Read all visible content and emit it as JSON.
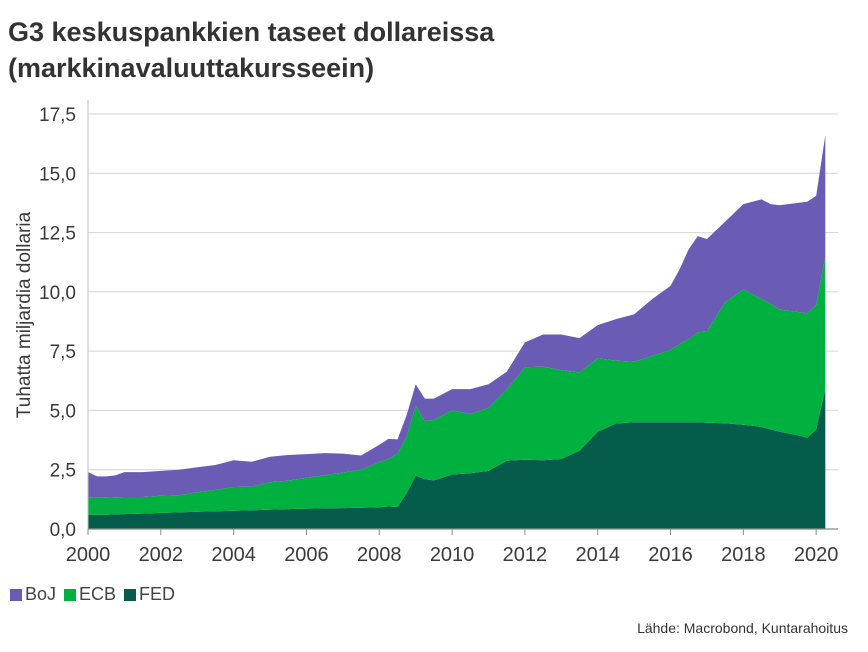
{
  "title_lines": [
    "G3 keskuspankkien taseet dollareissa",
    "(markkinavaluuttakursseein)"
  ],
  "source": "Lähde: Macrobond, Kuntarahoitus",
  "chart_data": {
    "type": "area",
    "stacked": true,
    "ylabel": "Tuhatta miljardia dollaria",
    "xlabel": "",
    "ylim": [
      0,
      17.5
    ],
    "xlim": [
      2000,
      2020.6
    ],
    "yticks": [
      "0,0",
      "2,5",
      "5,0",
      "7,5",
      "10,0",
      "12,5",
      "15,0",
      "17,5"
    ],
    "xticks": [
      "2000",
      "2002",
      "2004",
      "2006",
      "2008",
      "2010",
      "2012",
      "2014",
      "2016",
      "2018",
      "2020"
    ],
    "grid": "horizontal",
    "legend_position": "bottom-left",
    "x": [
      2000.0,
      2000.25,
      2000.5,
      2000.75,
      2001.0,
      2001.5,
      2002.0,
      2002.5,
      2003.0,
      2003.5,
      2004.0,
      2004.5,
      2005.0,
      2005.5,
      2006.0,
      2006.5,
      2007.0,
      2007.5,
      2008.0,
      2008.25,
      2008.5,
      2008.75,
      2009.0,
      2009.25,
      2009.5,
      2010.0,
      2010.5,
      2011.0,
      2011.5,
      2012.0,
      2012.5,
      2013.0,
      2013.5,
      2014.0,
      2014.5,
      2015.0,
      2015.5,
      2016.0,
      2016.25,
      2016.5,
      2016.75,
      2017.0,
      2017.5,
      2018.0,
      2018.25,
      2018.5,
      2018.75,
      2019.0,
      2019.5,
      2019.75,
      2020.0,
      2020.25
    ],
    "series": [
      {
        "name": "FED",
        "color": "#055c4a",
        "values": [
          0.6,
          0.6,
          0.6,
          0.62,
          0.63,
          0.65,
          0.68,
          0.7,
          0.73,
          0.75,
          0.77,
          0.79,
          0.82,
          0.84,
          0.86,
          0.87,
          0.88,
          0.9,
          0.92,
          0.95,
          0.93,
          1.5,
          2.25,
          2.1,
          2.05,
          2.3,
          2.35,
          2.45,
          2.88,
          2.92,
          2.9,
          2.95,
          3.3,
          4.1,
          4.45,
          4.5,
          4.5,
          4.5,
          4.5,
          4.5,
          4.5,
          4.48,
          4.46,
          4.4,
          4.35,
          4.3,
          4.2,
          4.1,
          3.95,
          3.85,
          4.2,
          5.9
        ]
      },
      {
        "name": "ECB",
        "color": "#00b140",
        "values": [
          0.75,
          0.72,
          0.72,
          0.72,
          0.72,
          0.7,
          0.72,
          0.73,
          0.82,
          0.9,
          1.0,
          1.0,
          1.15,
          1.2,
          1.3,
          1.4,
          1.5,
          1.6,
          1.9,
          2.0,
          2.25,
          2.4,
          2.95,
          2.45,
          2.55,
          2.7,
          2.5,
          2.65,
          3.0,
          3.9,
          3.95,
          3.75,
          3.3,
          3.1,
          2.65,
          2.55,
          2.8,
          3.05,
          3.3,
          3.5,
          3.8,
          3.85,
          5.1,
          5.7,
          5.55,
          5.4,
          5.3,
          5.15,
          5.2,
          5.25,
          5.25,
          5.6
        ]
      },
      {
        "name": "BoJ",
        "color": "#6a5cb5",
        "values": [
          1.05,
          0.9,
          0.9,
          0.92,
          1.05,
          1.05,
          1.05,
          1.07,
          1.05,
          1.05,
          1.13,
          1.05,
          1.08,
          1.08,
          1.0,
          0.93,
          0.8,
          0.6,
          0.73,
          0.85,
          0.6,
          0.9,
          0.9,
          0.95,
          0.9,
          0.9,
          1.05,
          1.0,
          0.75,
          1.05,
          1.35,
          1.5,
          1.45,
          1.4,
          1.75,
          2.0,
          2.4,
          2.7,
          3.15,
          3.8,
          4.05,
          3.9,
          3.4,
          3.6,
          3.9,
          4.2,
          4.2,
          4.4,
          4.6,
          4.7,
          4.6,
          5.1
        ]
      }
    ]
  }
}
